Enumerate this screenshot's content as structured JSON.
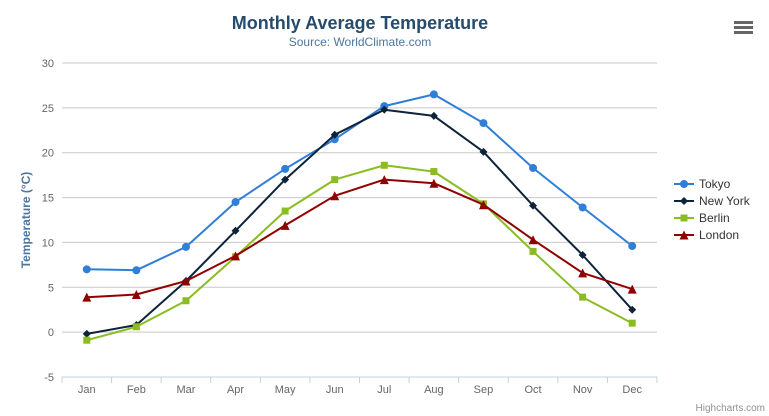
{
  "header": {
    "title": "Monthly Average Temperature",
    "subtitle": "Source: WorldClimate.com"
  },
  "credit": "Highcharts.com",
  "export_menu": {
    "icon": "hamburger-icon"
  },
  "colors": {
    "title": "#274b6d",
    "subtitle": "#4d759e",
    "axis_title": "#4d759e",
    "axis_label": "#666666",
    "gridline": "#c9c9c9",
    "axis_line": "#c0d0e0",
    "legend_text": "#333333",
    "credit_text": "#909090",
    "background": "#ffffff"
  },
  "chart_data": {
    "type": "line",
    "title": "Monthly Average Temperature",
    "subtitle": "Source: WorldClimate.com",
    "categories": [
      "Jan",
      "Feb",
      "Mar",
      "Apr",
      "May",
      "Jun",
      "Jul",
      "Aug",
      "Sep",
      "Oct",
      "Nov",
      "Dec"
    ],
    "xlabel": "",
    "ylabel": "Temperature (°C)",
    "ylim": [
      -5,
      30
    ],
    "ytick_interval": 5,
    "grid": true,
    "legend_position": "right",
    "series": [
      {
        "name": "Tokyo",
        "color": "#2f7ed8",
        "marker": "circle",
        "values": [
          7.0,
          6.9,
          9.5,
          14.5,
          18.2,
          21.5,
          25.2,
          26.5,
          23.3,
          18.3,
          13.9,
          9.6
        ]
      },
      {
        "name": "New York",
        "color": "#0d233a",
        "marker": "diamond",
        "values": [
          -0.2,
          0.8,
          5.7,
          11.3,
          17.0,
          22.0,
          24.8,
          24.1,
          20.1,
          14.1,
          8.6,
          2.5
        ]
      },
      {
        "name": "Berlin",
        "color": "#8bbc21",
        "marker": "square",
        "values": [
          -0.9,
          0.6,
          3.5,
          8.4,
          13.5,
          17.0,
          18.6,
          17.9,
          14.3,
          9.0,
          3.9,
          1.0
        ]
      },
      {
        "name": "London",
        "color": "#910000",
        "marker": "triangle",
        "values": [
          3.9,
          4.2,
          5.7,
          8.5,
          11.9,
          15.2,
          17.0,
          16.6,
          14.2,
          10.3,
          6.6,
          4.8
        ]
      }
    ]
  }
}
